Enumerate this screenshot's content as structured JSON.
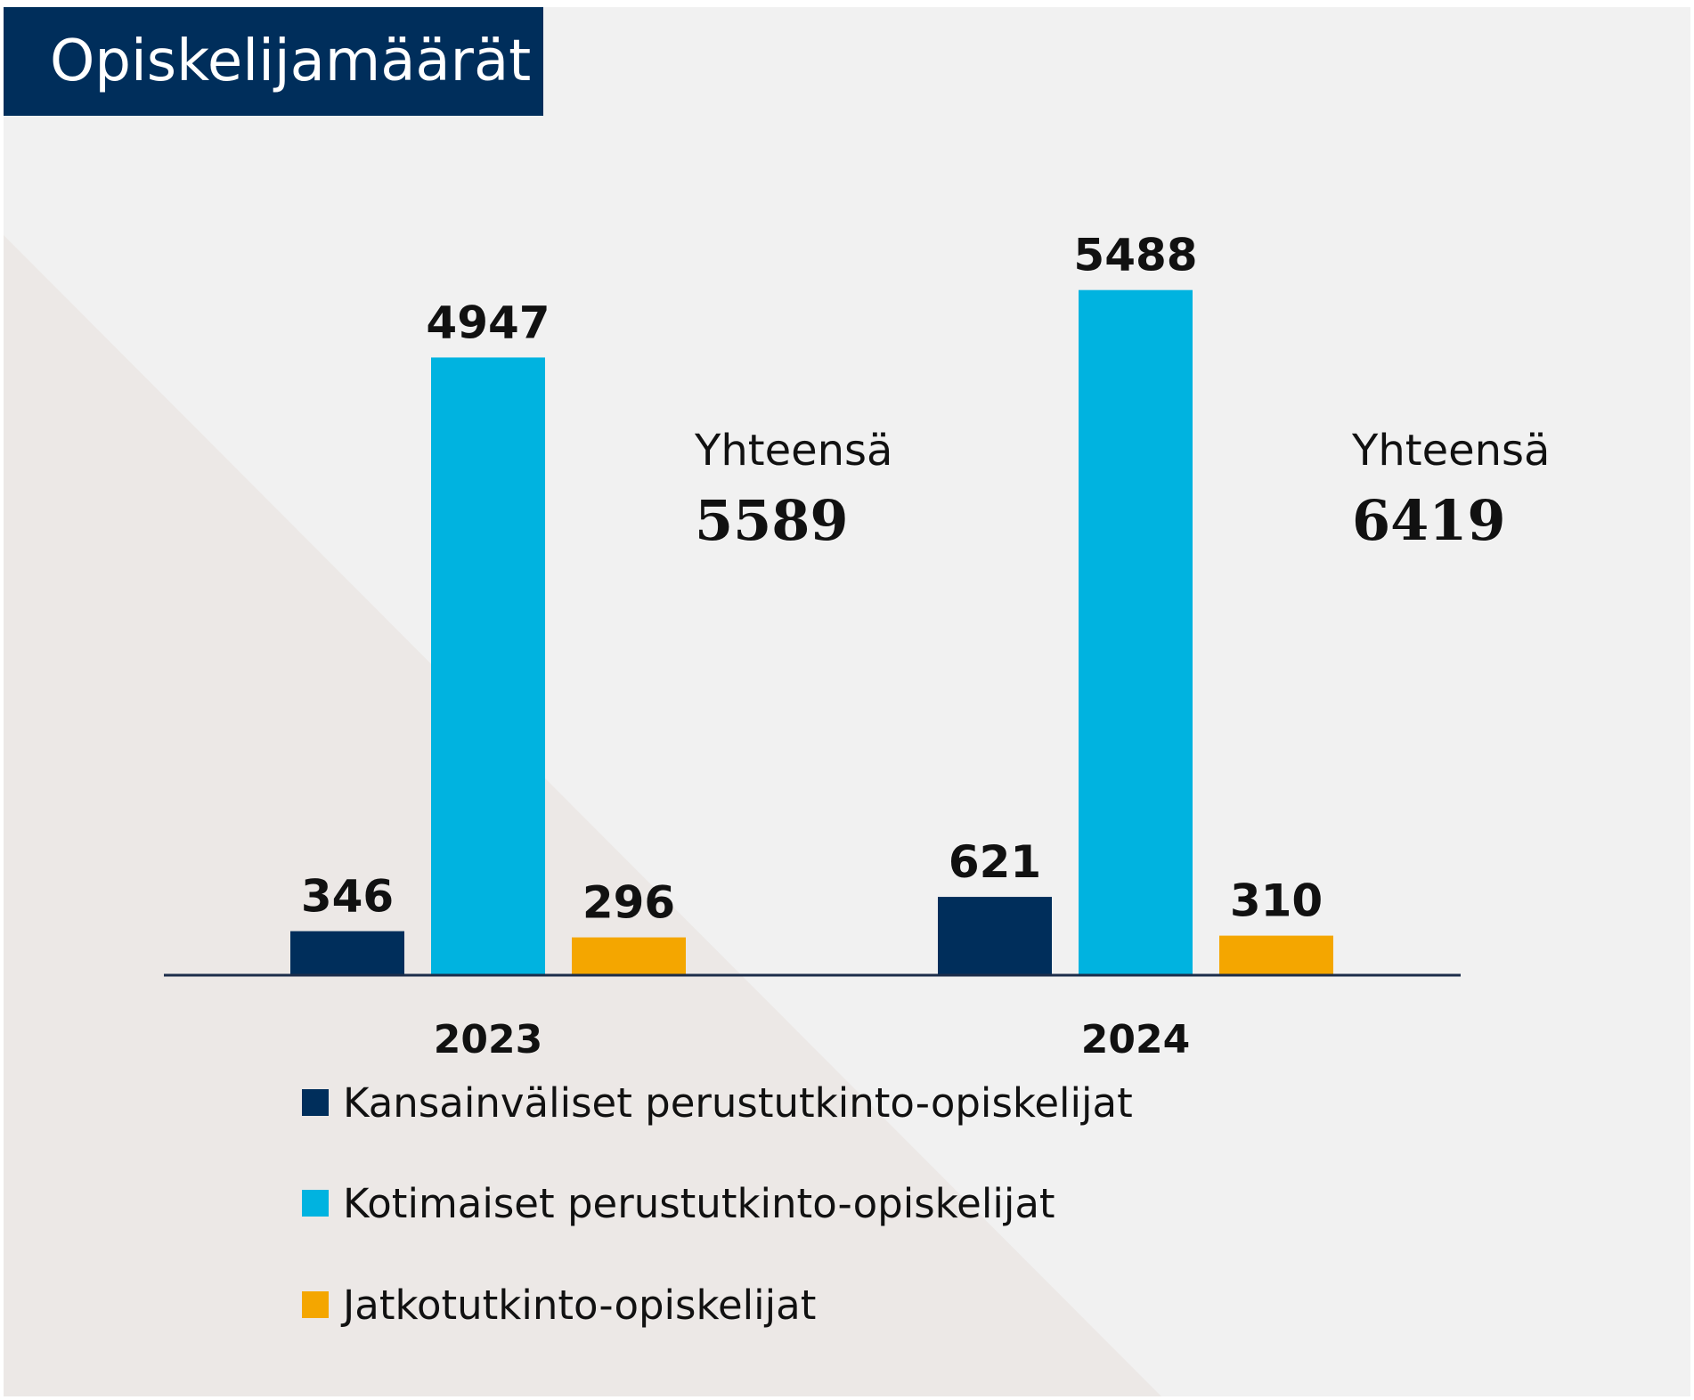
{
  "title": "Opiskelijamäärät",
  "colors": {
    "international": "#002e5b",
    "domestic": "#00b3e0",
    "postgraduate": "#f4a600",
    "background": "#f1f1f1",
    "diagonal": "#ece8e6"
  },
  "totals": [
    {
      "label": "Yhteensä",
      "value": "5589"
    },
    {
      "label": "Yhteensä",
      "value": "6419"
    }
  ],
  "legend": [
    {
      "label": "Kansainväliset perustutkinto-opiskelijat",
      "color": "#002e5b"
    },
    {
      "label": "Kotimaiset perustutkinto-opiskelijat",
      "color": "#00b3e0"
    },
    {
      "label": "Jatkotutkinto-opiskelijat",
      "color": "#f4a600"
    }
  ],
  "chart_data": {
    "type": "bar",
    "categories": [
      "2023",
      "2024"
    ],
    "series": [
      {
        "name": "Kansainväliset perustutkinto-opiskelijat",
        "values": [
          346,
          621
        ],
        "color": "#002e5b"
      },
      {
        "name": "Kotimaiset perustutkinto-opiskelijat",
        "values": [
          4947,
          5488
        ],
        "color": "#00b3e0"
      },
      {
        "name": "Jatkotutkinto-opiskelijat",
        "values": [
          296,
          310
        ],
        "color": "#f4a600"
      }
    ],
    "title": "Opiskelijamäärät",
    "xlabel": "",
    "ylabel": "",
    "ylim": [
      0,
      5800
    ],
    "grid": false,
    "legend_position": "bottom"
  }
}
